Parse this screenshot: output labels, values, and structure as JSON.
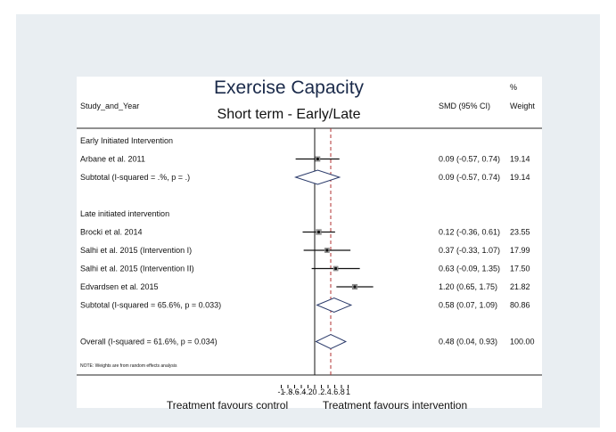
{
  "chart_data": {
    "type": "forest",
    "title": "Exercise Capacity",
    "subtitle": "Short term - Early/Late",
    "columns": {
      "study": "Study_and_Year",
      "effect": "SMD (95% CI)",
      "weight_pct": "%",
      "weight": "Weight"
    },
    "xaxis": {
      "ticks": [
        -1,
        -0.8,
        -0.6,
        -0.4,
        -0.2,
        0,
        0.2,
        0.4,
        0.6,
        0.8,
        1
      ],
      "tick_labels": [
        "-1",
        "-.8",
        "-.6",
        "-.4",
        "-.2",
        "0",
        ".2",
        ".4",
        ".6",
        ".8",
        "1"
      ],
      "label_left": "Treatment favours control",
      "label_right": "Treatment favours intervention",
      "null_line": 0,
      "overall_line": 0.48
    },
    "groups": [
      {
        "header": "Early Initiated Intervention",
        "studies": [
          {
            "label": "Arbane et al. 2011",
            "est": 0.09,
            "lo": -0.57,
            "hi": 0.74,
            "ci_text": "0.09 (-0.57, 0.74)",
            "weight": "19.14"
          }
        ],
        "subtotal": {
          "label": "Subtotal  (I-squared = .%, p = .)",
          "est": 0.09,
          "lo": -0.57,
          "hi": 0.74,
          "ci_text": "0.09 (-0.57, 0.74)",
          "weight": "19.14"
        }
      },
      {
        "header": "Late initiated intervention",
        "studies": [
          {
            "label": "Brocki et al. 2014",
            "est": 0.12,
            "lo": -0.36,
            "hi": 0.61,
            "ci_text": "0.12 (-0.36, 0.61)",
            "weight": "23.55"
          },
          {
            "label": "Salhi et al. 2015 (Intervention I)",
            "est": 0.37,
            "lo": -0.33,
            "hi": 1.07,
            "ci_text": "0.37 (-0.33, 1.07)",
            "weight": "17.99"
          },
          {
            "label": "Salhi et al. 2015 (Intervention II)",
            "est": 0.63,
            "lo": -0.09,
            "hi": 1.35,
            "ci_text": "0.63 (-0.09, 1.35)",
            "weight": "17.50"
          },
          {
            "label": "Edvardsen et al. 2015",
            "est": 1.2,
            "lo": 0.65,
            "hi": 1.75,
            "ci_text": "1.20 (0.65, 1.75)",
            "weight": "21.82"
          }
        ],
        "subtotal": {
          "label": "Subtotal  (I-squared = 65.6%, p = 0.033)",
          "est": 0.58,
          "lo": 0.07,
          "hi": 1.09,
          "ci_text": "0.58 (0.07, 1.09)",
          "weight": "80.86"
        }
      }
    ],
    "overall": {
      "label": "Overall  (I-squared = 61.6%, p = 0.034)",
      "est": 0.48,
      "lo": 0.04,
      "hi": 0.93,
      "ci_text": "0.48 (0.04, 0.93)",
      "weight": "100.00"
    },
    "note": "NOTE: Weights are from random effects analysis",
    "colors": {
      "diamond": "#2a3a6a",
      "reference_line": "#b03030",
      "title": "#1a2a4a"
    }
  }
}
